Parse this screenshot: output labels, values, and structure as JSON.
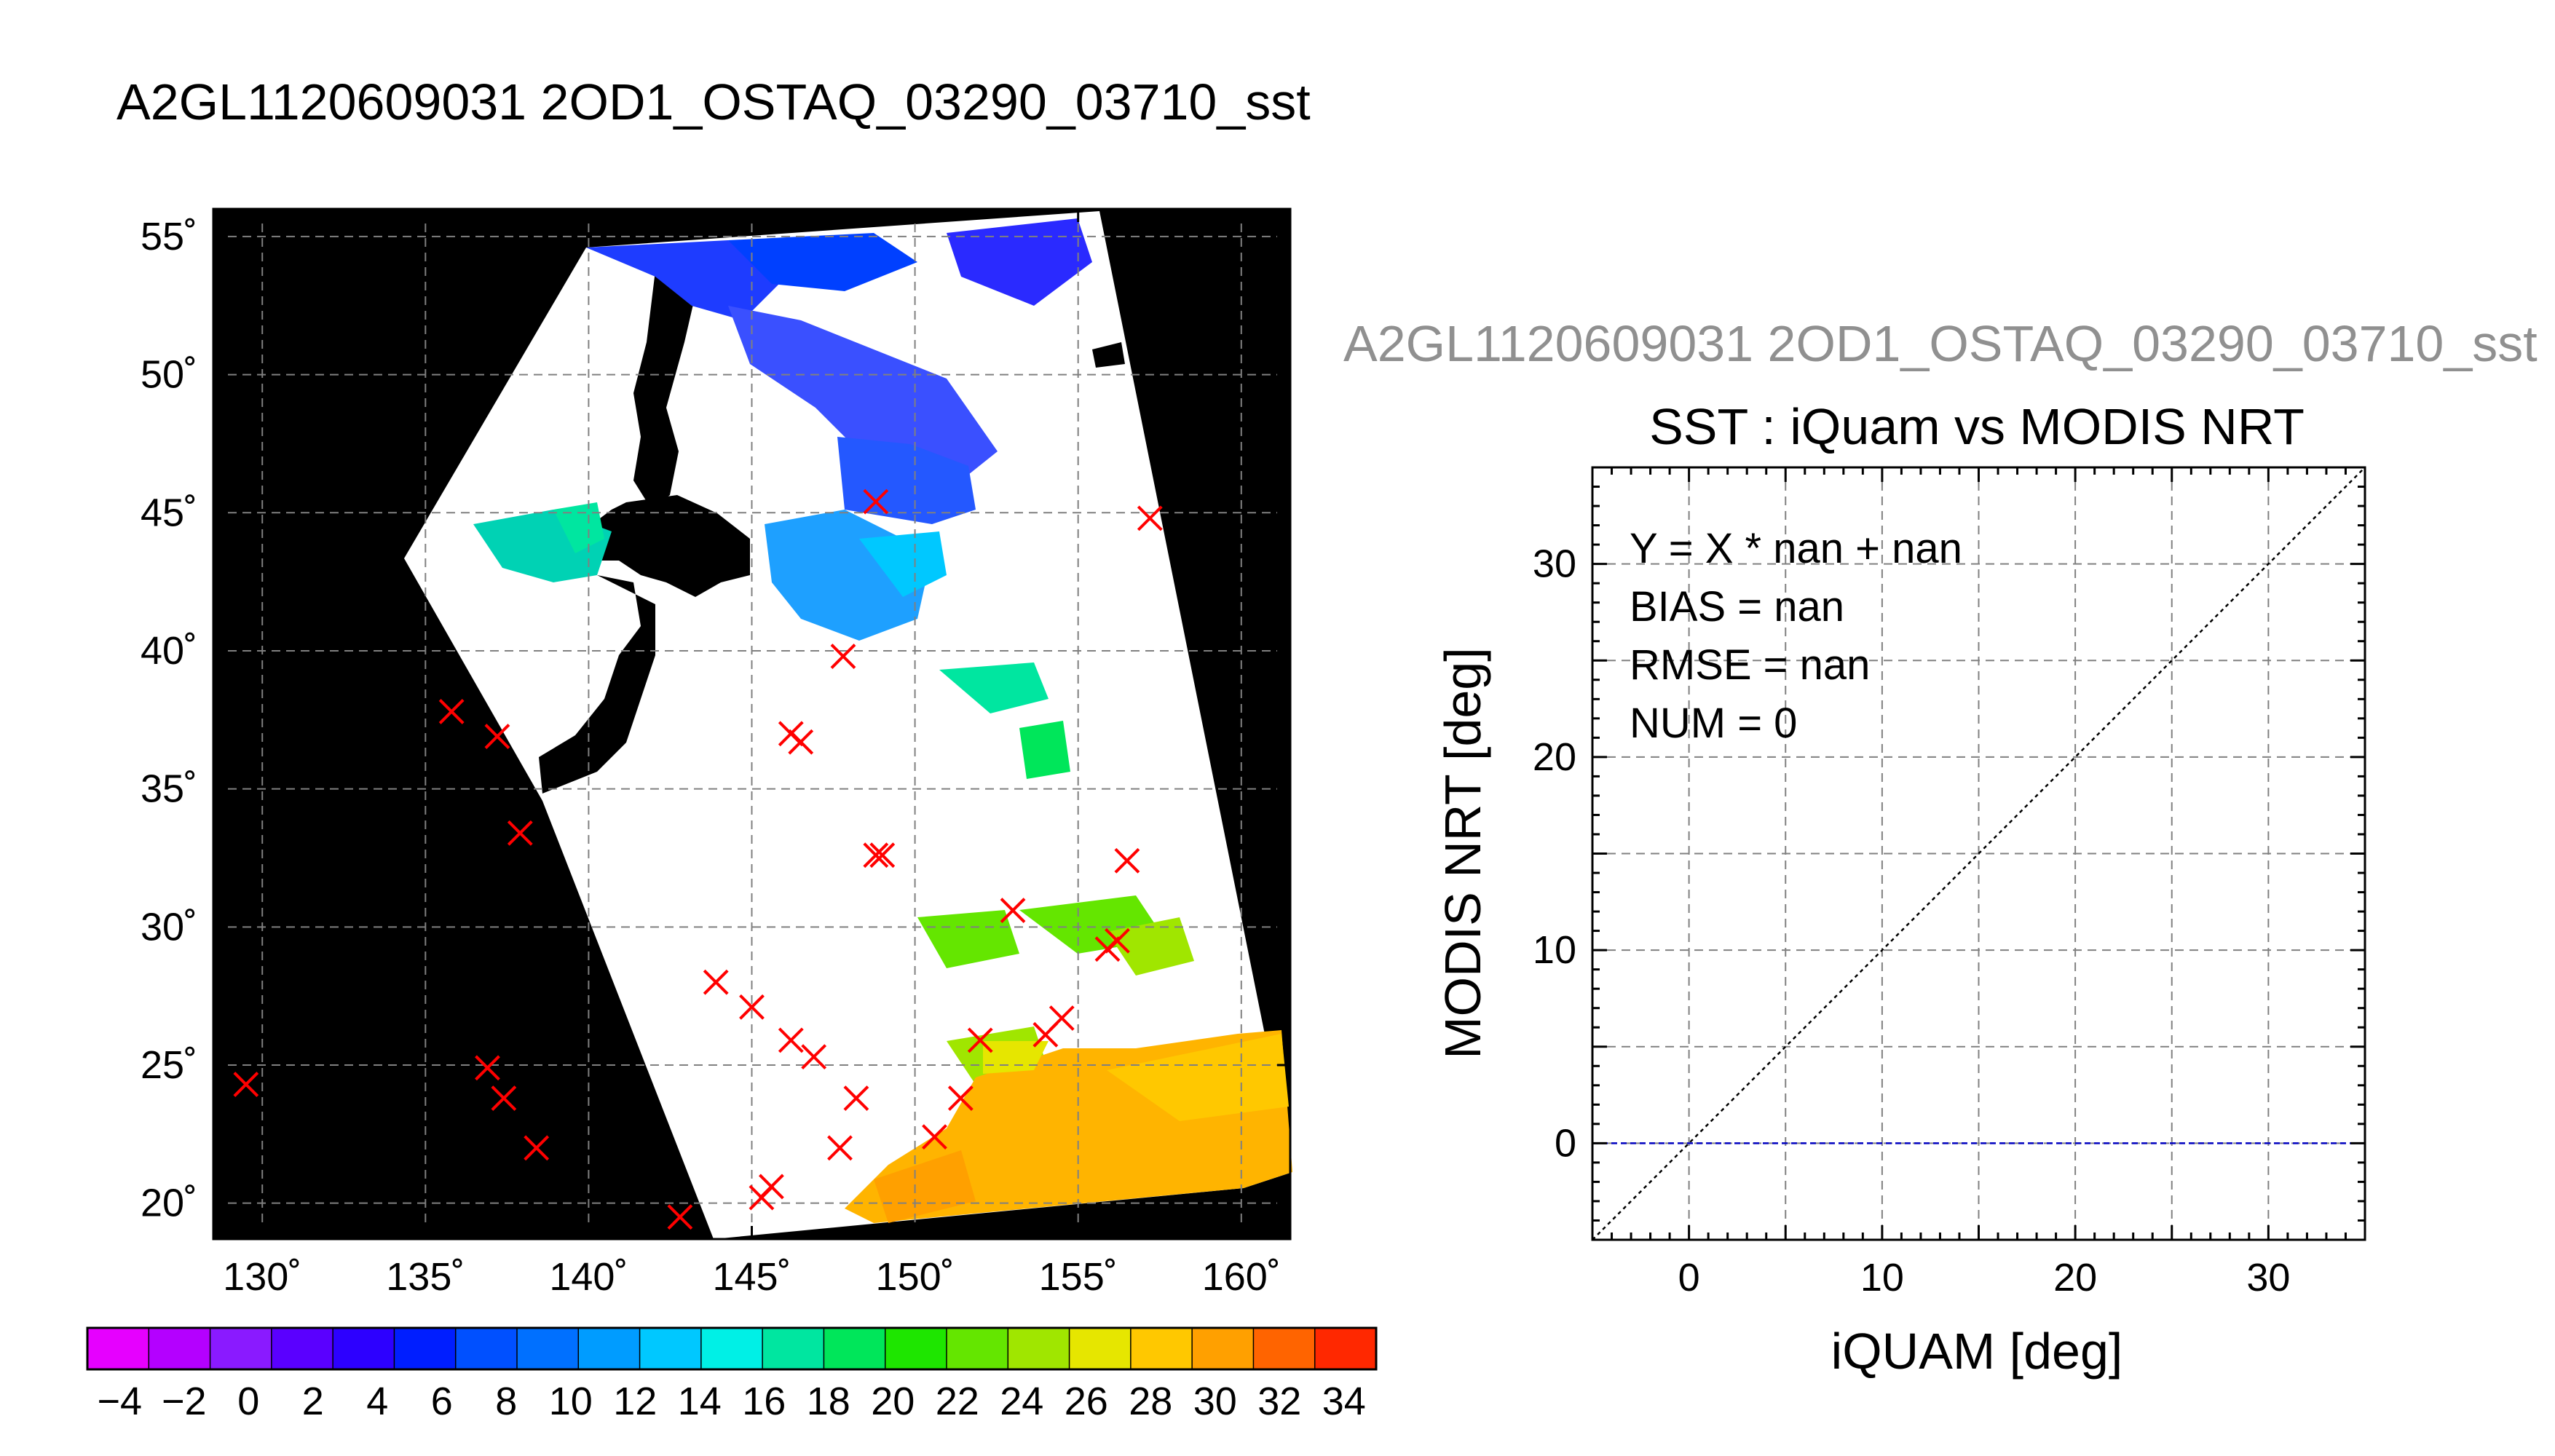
{
  "main_title": "A2GL1120609031 2OD1_OSTAQ_03290_03710_sst",
  "right_title": "A2GL1120609031 2OD1_OSTAQ_03290_03710_sst",
  "chart_data": [
    {
      "type": "scatter",
      "subtype": "map",
      "title": "A2GL1120609031 2OD1_OSTAQ_03290_03710_sst",
      "xlabel": "",
      "ylabel": "",
      "x_ticks": [
        "130˚",
        "135˚",
        "140˚",
        "145˚",
        "150˚",
        "155˚",
        "160˚"
      ],
      "x_tick_values": [
        130,
        135,
        140,
        145,
        150,
        155,
        160
      ],
      "y_ticks": [
        "20˚",
        "25˚",
        "30˚",
        "35˚",
        "40˚",
        "45˚",
        "50˚",
        "55˚"
      ],
      "y_tick_values": [
        20,
        25,
        30,
        35,
        40,
        45,
        50,
        55
      ],
      "xlim": [
        128.5,
        161.5
      ],
      "ylim": [
        18.7,
        56
      ],
      "grid": true,
      "series": [
        {
          "marker": "x",
          "color": "#ff0000",
          "points": [
            [
              129.5,
              24.3
            ],
            [
              135.8,
              37.8
            ],
            [
              137.2,
              36.9
            ],
            [
              137.9,
              33.4
            ],
            [
              136.9,
              24.9
            ],
            [
              137.4,
              23.8
            ],
            [
              138.4,
              22.0
            ],
            [
              142.8,
              19.5
            ],
            [
              143.9,
              28.0
            ],
            [
              145.0,
              27.1
            ],
            [
              145.3,
              20.2
            ],
            [
              145.6,
              20.6
            ],
            [
              146.2,
              37.0
            ],
            [
              146.5,
              36.7
            ],
            [
              146.2,
              25.9
            ],
            [
              146.9,
              25.3
            ],
            [
              147.7,
              22.0
            ],
            [
              148.2,
              23.8
            ],
            [
              147.8,
              39.8
            ],
            [
              148.8,
              45.4
            ],
            [
              148.8,
              32.6
            ],
            [
              149.0,
              32.6
            ],
            [
              150.6,
              22.4
            ],
            [
              151.4,
              23.8
            ],
            [
              152.0,
              25.9
            ],
            [
              153.0,
              30.6
            ],
            [
              154.0,
              26.1
            ],
            [
              154.5,
              26.7
            ],
            [
              155.9,
              29.2
            ],
            [
              156.2,
              29.5
            ],
            [
              156.5,
              32.4
            ],
            [
              157.2,
              44.8
            ]
          ]
        }
      ],
      "colorbar": {
        "ticks": [
          "−4",
          "−2",
          "0",
          "2",
          "4",
          "6",
          "8",
          "10",
          "12",
          "14",
          "16",
          "18",
          "20",
          "22",
          "24",
          "26",
          "28",
          "30",
          "32",
          "34"
        ],
        "range": [
          -5,
          35
        ],
        "unit_step": 2,
        "colors": [
          "#e600ff",
          "#b400ff",
          "#8a1aff",
          "#5a00ff",
          "#2d00ff",
          "#001eff",
          "#0050ff",
          "#0070ff",
          "#009cff",
          "#00c8ff",
          "#00f0e6",
          "#00e6a0",
          "#00e65a",
          "#1ee600",
          "#64e600",
          "#a0e600",
          "#e6e600",
          "#ffc800",
          "#ffa000",
          "#ff6400",
          "#ff2800"
        ]
      }
    },
    {
      "type": "scatter",
      "title": "SST : iQuam vs MODIS NRT",
      "xlabel": "iQUAM [deg]",
      "ylabel": "MODIS NRT [deg]",
      "xlim": [
        -5,
        35
      ],
      "ylim": [
        -5,
        35
      ],
      "x_ticks": [
        "0",
        "10",
        "20",
        "30"
      ],
      "x_tick_values": [
        0,
        10,
        20,
        30
      ],
      "y_ticks": [
        "0",
        "10",
        "20",
        "30"
      ],
      "y_tick_values": [
        0,
        10,
        20,
        30
      ],
      "grid": true,
      "annotations": [
        "Y = X * nan + nan",
        "BIAS = nan",
        "RMSE = nan",
        "NUM = 0"
      ],
      "series": [
        {
          "points": []
        }
      ],
      "reference_lines": [
        {
          "kind": "identity",
          "style": "dotted",
          "color": "#000000"
        },
        {
          "kind": "horizontal",
          "y": 0,
          "style": "dashed",
          "color": "#0000c0"
        }
      ]
    }
  ]
}
